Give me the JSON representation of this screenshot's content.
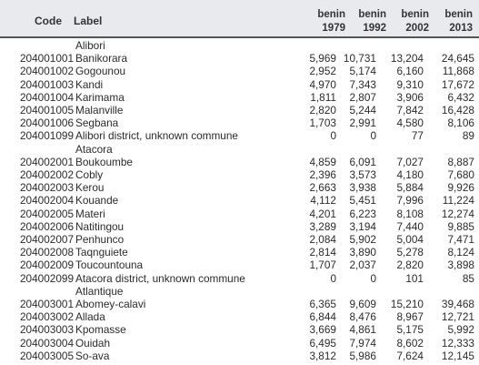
{
  "header": {
    "code": "Code",
    "label": "Label",
    "years": [
      {
        "country": "benin",
        "year": "1979"
      },
      {
        "country": "benin",
        "year": "1992"
      },
      {
        "country": "benin",
        "year": "2002"
      },
      {
        "country": "benin",
        "year": "2013"
      }
    ]
  },
  "rows": [
    {
      "code": "",
      "label": "Alibori",
      "v": [
        "",
        "",
        "",
        ""
      ]
    },
    {
      "code": "204001001",
      "label": "Banikorara",
      "v": [
        "5,969",
        "10,731",
        "13,204",
        "24,645"
      ]
    },
    {
      "code": "204001002",
      "label": "Gogounou",
      "v": [
        "2,952",
        "5,174",
        "6,160",
        "11,868"
      ]
    },
    {
      "code": "204001003",
      "label": "Kandi",
      "v": [
        "4,970",
        "7,343",
        "9,310",
        "17,672"
      ]
    },
    {
      "code": "204001004",
      "label": "Karimama",
      "v": [
        "1,811",
        "2,807",
        "3,906",
        "6,432"
      ]
    },
    {
      "code": "204001005",
      "label": "Malanville",
      "v": [
        "2,820",
        "5,244",
        "7,842",
        "16,428"
      ]
    },
    {
      "code": "204001006",
      "label": "Segbana",
      "v": [
        "1,703",
        "2,991",
        "4,580",
        "8,106"
      ]
    },
    {
      "code": "204001099",
      "label": "Alibori district, unknown commune",
      "v": [
        "0",
        "0",
        "77",
        "89"
      ]
    },
    {
      "code": "",
      "label": "Atacora",
      "v": [
        "",
        "",
        "",
        ""
      ]
    },
    {
      "code": "204002001",
      "label": "Boukoumbe",
      "v": [
        "4,859",
        "6,091",
        "7,027",
        "8,887"
      ]
    },
    {
      "code": "204002002",
      "label": "Cobly",
      "v": [
        "2,396",
        "3,573",
        "4,180",
        "7,680"
      ]
    },
    {
      "code": "204002003",
      "label": "Kerou",
      "v": [
        "2,663",
        "3,938",
        "5,884",
        "9,926"
      ]
    },
    {
      "code": "204002004",
      "label": "Kouande",
      "v": [
        "4,112",
        "5,451",
        "7,996",
        "11,224"
      ]
    },
    {
      "code": "204002005",
      "label": "Materi",
      "v": [
        "4,201",
        "6,223",
        "8,108",
        "12,274"
      ]
    },
    {
      "code": "204002006",
      "label": "Natitingou",
      "v": [
        "3,289",
        "3,194",
        "7,440",
        "9,885"
      ]
    },
    {
      "code": "204002007",
      "label": "Penhunco",
      "v": [
        "2,084",
        "5,902",
        "5,004",
        "7,471"
      ]
    },
    {
      "code": "204002008",
      "label": "Taqnguiete",
      "v": [
        "2,814",
        "3,890",
        "5,278",
        "8,124"
      ]
    },
    {
      "code": "204002009",
      "label": "Toucountouna",
      "v": [
        "1,707",
        "2,037",
        "2,820",
        "3,898"
      ]
    },
    {
      "code": "204002099",
      "label": "Atacora district, unknown commune",
      "v": [
        "0",
        "0",
        "101",
        "85"
      ]
    },
    {
      "code": "",
      "label": "Atlantique",
      "v": [
        "",
        "",
        "",
        ""
      ]
    },
    {
      "code": "204003001",
      "label": "Abomey-calavi",
      "v": [
        "6,365",
        "9,609",
        "15,210",
        "39,468"
      ]
    },
    {
      "code": "204003002",
      "label": "Allada",
      "v": [
        "6,844",
        "8,476",
        "8,967",
        "12,721"
      ]
    },
    {
      "code": "204003003",
      "label": "Kpomasse",
      "v": [
        "3,669",
        "4,861",
        "5,175",
        "5,992"
      ]
    },
    {
      "code": "204003004",
      "label": "Ouidah",
      "v": [
        "6,495",
        "7,974",
        "8,602",
        "12,333"
      ]
    },
    {
      "code": "204003005",
      "label": "So-ava",
      "v": [
        "3,812",
        "5,986",
        "7,624",
        "12,145"
      ]
    }
  ]
}
